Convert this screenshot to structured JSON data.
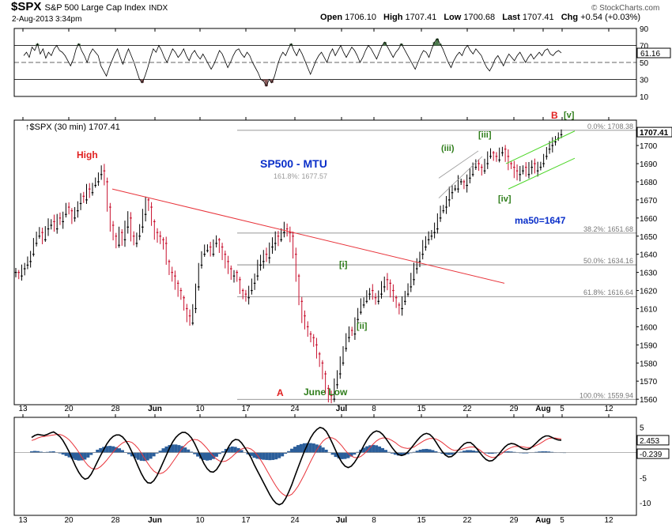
{
  "header": {
    "symbol": "$SPX",
    "name": "S&P 500 Large Cap Index",
    "exchange": "INDX",
    "datetime": "2-Aug-2013 3:34pm",
    "source": "© StockCharts.com",
    "quote": [
      {
        "label": "Open",
        "value": "1706.10"
      },
      {
        "label": "High",
        "value": "1707.41"
      },
      {
        "label": "Low",
        "value": "1700.68"
      },
      {
        "label": "Last",
        "value": "1707.41"
      },
      {
        "label": "Chg",
        "value": "+0.54 (+0.03%)"
      }
    ],
    "price_legend": "$SPX (30 min) 1707.41",
    "last_price_tag": "1707.41"
  },
  "colors": {
    "candle_up": "#000000",
    "candle_down": "#c8102e",
    "trendline": "#e8333a",
    "channel": "#4dd628",
    "wedge": "#9a9a9a",
    "rsi_overbought": "#4c7a4c",
    "rsi_oversold": "#8a5a5a",
    "macd_hist": "#2b5e9a",
    "macd_line": "#000000",
    "signal_line": "#e8333a",
    "wave_red": "#e02020",
    "wave_green": "#2e7d1a",
    "title_blue": "#0a2fc9"
  },
  "x_axis_labels": [
    "13",
    "20",
    "28",
    "Jun",
    "10",
    "17",
    "24",
    "Jul",
    "8",
    "15",
    "22",
    "29",
    "Aug",
    "5",
    "12"
  ],
  "chart_data": [
    {
      "type": "line",
      "panel": "RSI",
      "ylim": [
        10,
        90
      ],
      "y_ticks": [
        10,
        30,
        50,
        70,
        90
      ],
      "reference_lines": [
        30,
        50,
        70
      ],
      "last_value_tag": "61.16",
      "values": [
        58,
        62,
        56,
        68,
        64,
        72,
        60,
        66,
        55,
        62,
        58,
        66,
        70,
        64,
        62,
        58,
        52,
        46,
        54,
        66,
        72,
        64,
        58,
        50,
        60,
        66,
        62,
        58,
        46,
        40,
        34,
        44,
        52,
        60,
        66,
        56,
        48,
        58,
        66,
        58,
        50,
        40,
        30,
        26,
        34,
        44,
        56,
        66,
        62,
        70,
        64,
        56,
        50,
        58,
        66,
        62,
        56,
        60,
        66,
        58,
        52,
        60,
        64,
        58,
        54,
        60,
        54,
        48,
        42,
        48,
        56,
        64,
        60,
        52,
        44,
        50,
        58,
        64,
        66,
        60,
        56,
        62,
        58,
        50,
        44,
        38,
        30,
        28,
        22,
        30,
        26,
        34,
        46,
        56,
        62,
        58,
        66,
        72,
        64,
        58,
        66,
        60,
        52,
        44,
        36,
        44,
        52,
        58,
        62,
        56,
        50,
        60,
        66,
        58,
        64,
        70,
        62,
        56,
        62,
        68,
        64,
        58,
        50,
        56,
        64,
        70,
        66,
        60,
        54,
        62,
        70,
        74,
        68,
        62,
        56,
        62,
        66,
        72,
        66,
        60,
        54,
        48,
        42,
        50,
        58,
        64,
        62,
        56,
        66,
        74,
        78,
        72,
        66,
        58,
        50,
        44,
        52,
        58,
        62,
        58,
        66,
        70,
        64,
        60,
        66,
        62,
        58,
        50,
        44,
        40,
        46,
        54,
        58,
        52,
        46,
        54,
        60,
        56,
        52,
        58,
        62,
        56,
        50,
        56,
        60,
        54,
        58,
        62,
        58,
        64,
        66,
        60,
        58,
        62,
        64,
        61.16
      ]
    },
    {
      "type": "line",
      "panel": "Price",
      "title": "SP500 - MTU",
      "ylim": [
        1557,
        1714
      ],
      "y_ticks": [
        1560,
        1570,
        1580,
        1590,
        1600,
        1610,
        1620,
        1630,
        1640,
        1650,
        1660,
        1670,
        1680,
        1690,
        1700
      ],
      "values": [
        1630,
        1628,
        1632,
        1634,
        1636,
        1640,
        1646,
        1650,
        1652,
        1648,
        1654,
        1656,
        1658,
        1654,
        1660,
        1658,
        1662,
        1666,
        1664,
        1660,
        1664,
        1668,
        1672,
        1670,
        1676,
        1674,
        1678,
        1680,
        1684,
        1686,
        1680,
        1666,
        1656,
        1650,
        1645,
        1652,
        1648,
        1655,
        1660,
        1650,
        1646,
        1650,
        1655,
        1662,
        1670,
        1666,
        1658,
        1652,
        1650,
        1648,
        1646,
        1636,
        1630,
        1628,
        1624,
        1620,
        1616,
        1610,
        1606,
        1602,
        1610,
        1622,
        1634,
        1640,
        1642,
        1644,
        1640,
        1646,
        1648,
        1644,
        1640,
        1636,
        1632,
        1628,
        1630,
        1626,
        1620,
        1618,
        1616,
        1620,
        1624,
        1628,
        1634,
        1636,
        1640,
        1638,
        1644,
        1646,
        1650,
        1648,
        1652,
        1654,
        1652,
        1650,
        1640,
        1628,
        1614,
        1606,
        1600,
        1596,
        1594,
        1590,
        1585,
        1580,
        1574,
        1566,
        1562,
        1560,
        1568,
        1574,
        1580,
        1588,
        1594,
        1598,
        1596,
        1604,
        1608,
        1612,
        1614,
        1618,
        1620,
        1616,
        1614,
        1618,
        1622,
        1626,
        1624,
        1620,
        1616,
        1612,
        1610,
        1614,
        1618,
        1622,
        1626,
        1632,
        1636,
        1640,
        1644,
        1648,
        1650,
        1652,
        1654,
        1660,
        1664,
        1666,
        1670,
        1674,
        1676,
        1676,
        1680,
        1680,
        1678,
        1682,
        1684,
        1688,
        1690,
        1688,
        1686,
        1690,
        1694,
        1696,
        1694,
        1692,
        1696,
        1698,
        1694,
        1690,
        1688,
        1686,
        1684,
        1686,
        1688,
        1684,
        1688,
        1690,
        1686,
        1688,
        1690,
        1694,
        1698,
        1700,
        1702,
        1704,
        1706,
        1707.41
      ]
    },
    {
      "type": "line",
      "panel": "MACD",
      "ylim": [
        -12.5,
        7
      ],
      "y_ticks": [
        -10,
        -5,
        0,
        5
      ],
      "series": [
        {
          "values": [
            3,
            3.4,
            3.6,
            3.5,
            3.4,
            3.6,
            3.9,
            4.1,
            3.7,
            3.2,
            2.4,
            1.3,
            0.1,
            -1.3,
            -2.7,
            -3.9,
            -4.8,
            -5.3,
            -5.1,
            -4.3,
            -3.1,
            -1.8,
            -0.6,
            0.6,
            1.7,
            2.6,
            3.2,
            3.5,
            3.5,
            3.1,
            2.4,
            1.4,
            0.1,
            -1.3,
            -2.8,
            -4.2,
            -5.3,
            -6,
            -6.1,
            -5.6,
            -4.6,
            -3.3,
            -1.9,
            -0.5,
            0.9,
            2.1,
            3,
            3.6,
            4,
            4,
            3.6,
            2.9,
            1.8,
            0.5,
            -0.9,
            -2.2,
            -3.2,
            -3.8,
            -3.9,
            -3.4,
            -2.4,
            -1.2,
            0.1,
            1.3,
            2.2,
            2.6,
            2.5,
            1.9,
            1,
            0,
            -1,
            -2.4,
            -3.6,
            -4.8,
            -6,
            -7.2,
            -8.4,
            -9.4,
            -10.1,
            -10.4,
            -10.1,
            -9.2,
            -7.9,
            -6.4,
            -4.7,
            -3,
            -1.4,
            0.2,
            1.6,
            2.9,
            3.9,
            4.6,
            5,
            4.8,
            4.2,
            3.1,
            1.8,
            0.4,
            -0.9,
            -2,
            -2.7,
            -3,
            -2.7,
            -2,
            -1,
            0.2,
            1.4,
            2.5,
            3.4,
            4,
            4.3,
            4.1,
            3.6,
            2.8,
            1.9,
            1,
            0.2,
            -0.4,
            -0.6,
            -0.4,
            0.1,
            0.8,
            1.6,
            2.4,
            3.1,
            3.6,
            3.8,
            3.6,
            3,
            2.1,
            1.1,
            0.2,
            -0.5,
            -0.9,
            -0.8,
            -0.3,
            0.4,
            1.1,
            1.7,
            2,
            2,
            1.5,
            0.8,
            0,
            -0.8,
            -1.4,
            -1.7,
            -1.6,
            -1.1,
            -0.4,
            0.4,
            1.1,
            1.6,
            1.8,
            1.7,
            1.4,
            1,
            0.7,
            0.6,
            0.8,
            1.3,
            1.9,
            2.5,
            3,
            3.3,
            3.3,
            3,
            2.7,
            2.5,
            2.453
          ]
        },
        {
          "values": [
            2.4,
            2.6,
            2.9,
            3.1,
            3.2,
            3.3,
            3.4,
            3.5,
            3.6,
            3.6,
            3.4,
            3,
            2.5,
            1.8,
            1,
            0.1,
            -0.9,
            -1.8,
            -2.6,
            -3.1,
            -3.3,
            -3.2,
            -2.8,
            -2.2,
            -1.5,
            -0.7,
            0.1,
            0.8,
            1.4,
            1.9,
            2.2,
            2.2,
            2,
            1.5,
            0.8,
            -0.1,
            -1.1,
            -2.1,
            -3,
            -3.7,
            -4.1,
            -4.2,
            -4,
            -3.5,
            -2.8,
            -1.9,
            -1,
            -0.1,
            0.8,
            1.5,
            2.1,
            2.5,
            2.6,
            2.5,
            2.1,
            1.5,
            0.8,
            0,
            -0.7,
            -1.3,
            -1.7,
            -1.8,
            -1.7,
            -1.3,
            -0.8,
            -0.2,
            0.3,
            0.7,
            0.9,
            0.9,
            0.7,
            0.2,
            -0.5,
            -1.4,
            -2.4,
            -3.5,
            -4.6,
            -5.7,
            -6.7,
            -7.6,
            -8.2,
            -8.6,
            -8.6,
            -8.3,
            -7.6,
            -6.7,
            -5.6,
            -4.4,
            -3.1,
            -1.8,
            -0.6,
            0.6,
            1.5,
            2.3,
            2.8,
            3,
            2.9,
            2.6,
            2,
            1.3,
            0.5,
            -0.2,
            -0.7,
            -1,
            -1,
            -0.8,
            -0.3,
            0.3,
            1,
            1.7,
            2.3,
            2.7,
            2.9,
            2.9,
            2.7,
            2.4,
            2,
            1.5,
            1.1,
            0.9,
            0.8,
            0.9,
            1.1,
            1.5,
            1.9,
            2.3,
            2.6,
            2.8,
            2.8,
            2.7,
            2.4,
            2,
            1.5,
            1,
            0.6,
            0.4,
            0.5,
            0.6,
            0.8,
            1,
            1.1,
            1.1,
            0.9,
            0.5,
            0,
            -0.5,
            -0.8,
            -1,
            -0.9,
            -0.6,
            -0.2,
            0.3,
            0.7,
            1,
            1.2,
            1.2,
            1.2,
            1.1,
            1,
            1,
            1.1,
            1.4,
            1.7,
            2.1,
            2.5,
            2.8,
            2.9,
            2.9,
            2.8,
            2.7
          ]
        },
        {
          "values": [
            0.6,
            0.8,
            0.7,
            0.4,
            0.2,
            0.3,
            0.5,
            0.6,
            0.1,
            -0.4,
            -1,
            -1.7,
            -2.4,
            -3.1,
            -3.7,
            -4,
            -3.9,
            -3.5,
            -2.5,
            -1.2,
            0.2,
            1.4,
            2.2,
            2.8,
            3.2,
            3.3,
            3.1,
            2.7,
            2.1,
            1.2,
            0.2,
            -0.8,
            -1.9,
            -2.8,
            -3.6,
            -4.1,
            -4.2,
            -3.9,
            -3.1,
            -1.9,
            -0.5,
            0.9,
            2.1,
            3,
            3.7,
            4,
            4,
            3.7,
            3.2,
            2.5,
            1.5,
            0.4,
            -0.8,
            -2,
            -3,
            -3.7,
            -4,
            -3.8,
            -3.2,
            -2.1,
            -0.7,
            0.6,
            1.8,
            2.6,
            3,
            2.8,
            2.2,
            1.2,
            0.1,
            -0.9,
            -1.7,
            -2.6,
            -3.1,
            -3.4,
            -3.6,
            -3.7,
            -3.8,
            -3.7,
            -3.4,
            -2.8,
            -1.9,
            -0.6,
            0.7,
            1.9,
            2.9,
            3.7,
            4.2,
            4.6,
            4.7,
            4.7,
            4.5,
            4,
            3.5,
            2.5,
            1.4,
            0.1,
            -1.1,
            -2.2,
            -2.9,
            -3.3,
            -3.2,
            -2.8,
            -2,
            -1,
            0.3,
            1.4,
            2.4,
            3.1,
            3.6,
            3.8,
            3.6,
            3,
            2.2,
            1.3,
            0.3,
            -0.5,
            -1.1,
            -1.5,
            -1.5,
            -1.2,
            -0.8,
            -0.3,
            0.3,
            0.9,
            1.4,
            1.7,
            1.8,
            1.6,
            1.2,
            0.6,
            0,
            -0.6,
            -1,
            -1.2,
            -1.1,
            -0.7,
            -0.2,
            0.4,
            0.9,
            1.2,
            1.2,
            1,
            0.7,
            0.3,
            -0.1,
            -0.4,
            -0.6,
            -0.6,
            -0.4,
            -0.1,
            0.2,
            0.5,
            0.6,
            0.5,
            0.3,
            0,
            -0.3,
            -0.4,
            -0.4,
            -0.2,
            0,
            0.3,
            0.5,
            0.6,
            0.6,
            0.5,
            0.3,
            0.1,
            -0.1,
            -0.2,
            -0.239
          ]
        }
      ],
      "tags": [
        "2.453",
        "-0.239"
      ]
    }
  ],
  "fib_levels": [
    {
      "label": "0.0%: 1708.38",
      "value": 1708.38
    },
    {
      "label": "38.2%: 1651.68",
      "value": 1651.68
    },
    {
      "label": "50.0%: 1634.16",
      "value": 1634.16
    },
    {
      "label": "61.8%: 1616.64",
      "value": 1616.64
    },
    {
      "label": "100.0%: 1559.94",
      "value": 1559.94
    }
  ],
  "annotations": {
    "high": "High",
    "a": "A",
    "b": "B",
    "june_low": "June Low",
    "w_i": "[i]",
    "w_ii": "[ii]",
    "w_iii": "(iii)",
    "w_iii_b": "[iii]",
    "w_iv": "[iv]",
    "w_v": "[v]",
    "ma50": "ma50=1647",
    "faint_overlap": "161.8%: 1677.57"
  }
}
